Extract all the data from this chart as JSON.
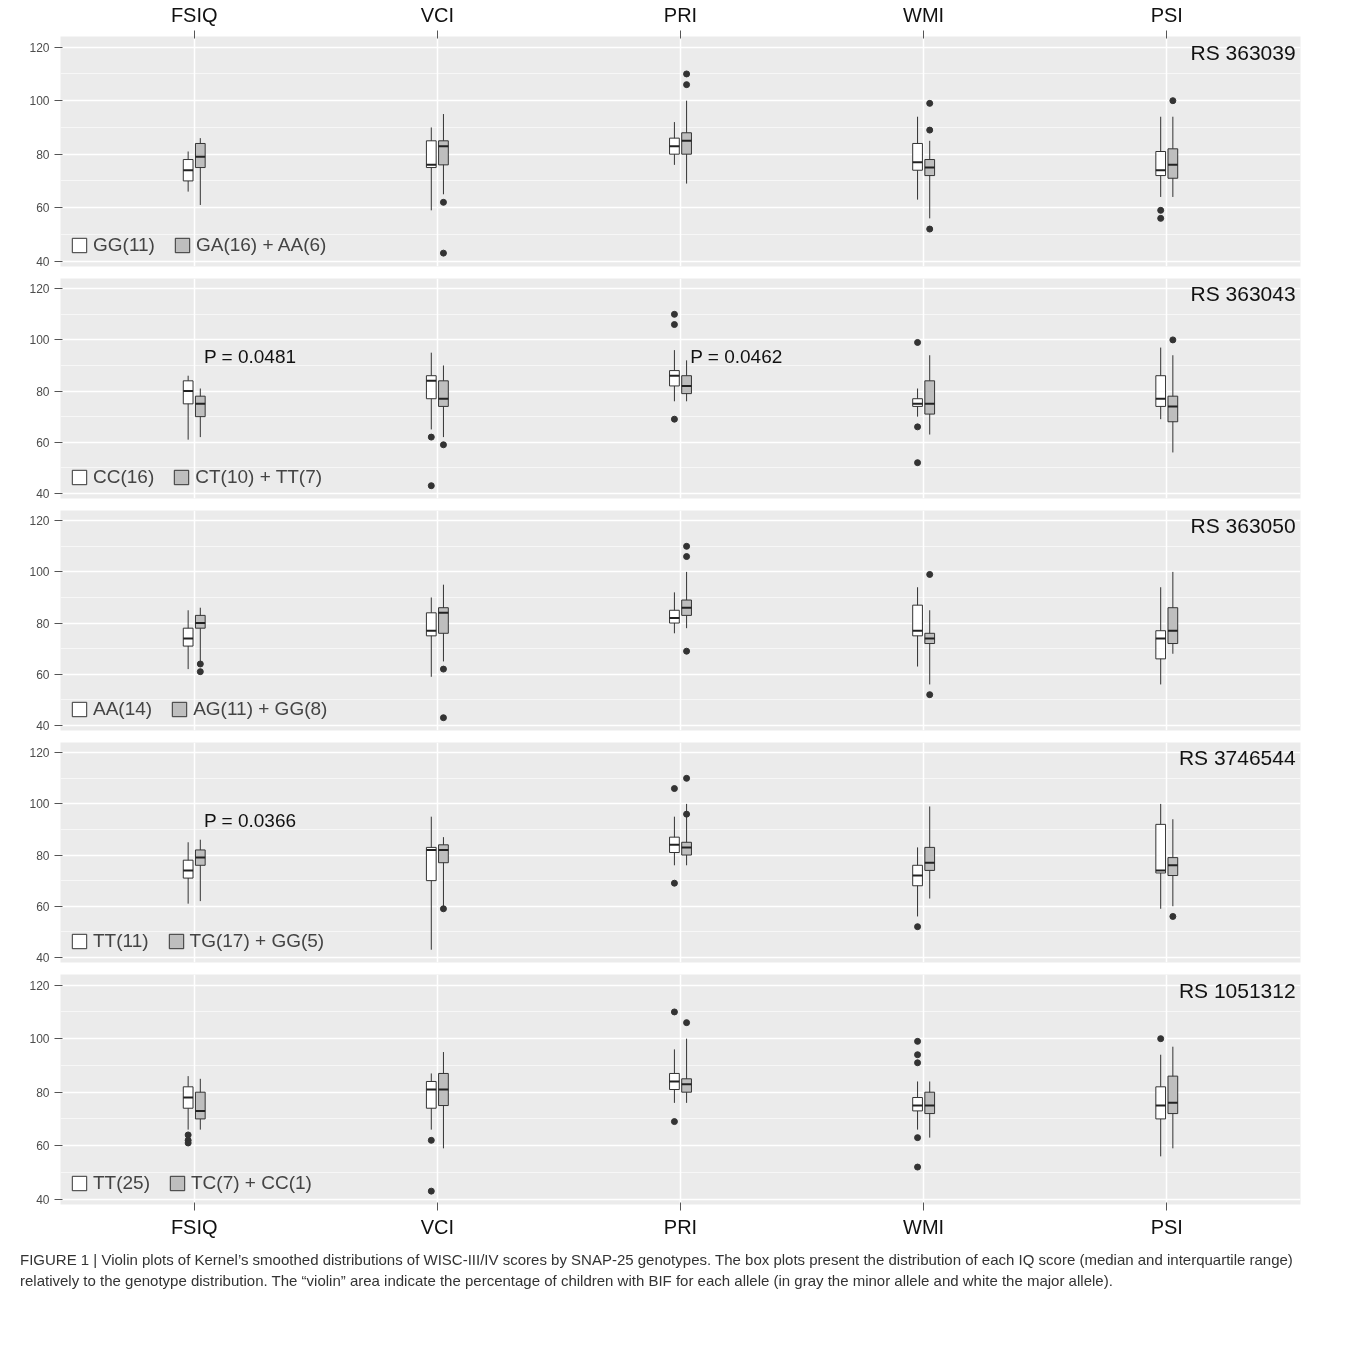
{
  "chart_data": [
    {
      "type": "box",
      "title": "RS 363039",
      "categories": [
        "FSIQ",
        "VCI",
        "PRI",
        "WMI",
        "PSI"
      ],
      "ylim": [
        38,
        124
      ],
      "yticks": [
        40,
        60,
        80,
        100,
        120
      ],
      "grid": true,
      "legend": "bottom left",
      "series": [
        {
          "name": "GG(11)",
          "color": "#ffffff",
          "boxes": [
            {
              "low": 66,
              "q1": 70,
              "median": 74,
              "q3": 78,
              "high": 81
            },
            {
              "low": 59,
              "q1": 75,
              "median": 76,
              "q3": 85,
              "high": 90
            },
            {
              "low": 76,
              "q1": 80,
              "median": 83,
              "q3": 86,
              "high": 92
            },
            {
              "low": 63,
              "q1": 74,
              "median": 77,
              "q3": 84,
              "high": 94
            },
            {
              "low": 64,
              "q1": 72,
              "median": 74,
              "q3": 81,
              "high": 94,
              "outliers": [
                59,
                56
              ]
            }
          ]
        },
        {
          "name": "GA(16) + AA(6)",
          "color": "#bebebe",
          "boxes": [
            {
              "low": 61,
              "q1": 75,
              "median": 79,
              "q3": 84,
              "high": 86
            },
            {
              "low": 65,
              "q1": 76,
              "median": 83,
              "q3": 85,
              "high": 95,
              "outliers": [
                62,
                43
              ]
            },
            {
              "low": 69,
              "q1": 80,
              "median": 85,
              "q3": 88,
              "high": 100,
              "outliers": [
                106,
                110
              ]
            },
            {
              "low": 56,
              "q1": 72,
              "median": 75,
              "q3": 78,
              "high": 85,
              "outliers": [
                99,
                89,
                52
              ]
            },
            {
              "low": 64,
              "q1": 71,
              "median": 76,
              "q3": 82,
              "high": 94,
              "outliers": [
                100
              ]
            }
          ]
        }
      ]
    },
    {
      "type": "box",
      "title": "RS 363043",
      "categories": [
        "FSIQ",
        "VCI",
        "PRI",
        "WMI",
        "PSI"
      ],
      "ylim": [
        38,
        124
      ],
      "yticks": [
        40,
        60,
        80,
        100,
        120
      ],
      "grid": true,
      "legend": "bottom left",
      "tick_labels": "y",
      "annotations": [
        "P = 0.0481",
        "P = 0.0462"
      ],
      "series": [
        {
          "name": "CC(16)",
          "color": "#ffffff",
          "boxes": [
            {
              "low": 61,
              "q1": 75,
              "median": 80,
              "q3": 84,
              "high": 86
            },
            {
              "low": 65,
              "q1": 77,
              "median": 84,
              "q3": 86,
              "high": 95,
              "outliers": [
                62,
                43
              ]
            },
            {
              "low": 76,
              "q1": 82,
              "median": 86,
              "q3": 88,
              "high": 96,
              "outliers": [
                106,
                110,
                69
              ]
            },
            {
              "low": 70,
              "q1": 74,
              "median": 75,
              "q3": 77,
              "high": 81,
              "outliers": [
                99,
                66,
                52
              ]
            },
            {
              "low": 69,
              "q1": 74,
              "median": 77,
              "q3": 86,
              "high": 97
            }
          ]
        },
        {
          "name": "CT(10) + TT(7)",
          "color": "#bebebe",
          "boxes": [
            {
              "low": 62,
              "q1": 70,
              "median": 75,
              "q3": 78,
              "high": 81
            },
            {
              "low": 62,
              "q1": 74,
              "median": 77,
              "q3": 84,
              "high": 90,
              "outliers": [
                59
              ]
            },
            {
              "low": 76,
              "q1": 79,
              "median": 82,
              "q3": 86,
              "high": 92
            },
            {
              "low": 63,
              "q1": 71,
              "median": 75,
              "q3": 84,
              "high": 94
            },
            {
              "low": 56,
              "q1": 68,
              "median": 74,
              "q3": 78,
              "high": 94,
              "outliers": [
                100
              ]
            }
          ]
        }
      ]
    },
    {
      "type": "box",
      "title": "RS 363050",
      "categories": [
        "FSIQ",
        "VCI",
        "PRI",
        "WMI",
        "PSI"
      ],
      "ylim": [
        38,
        124
      ],
      "yticks": [
        40,
        60,
        80,
        100,
        120
      ],
      "grid": true,
      "legend": "bottom left",
      "tick_labels": "y",
      "series": [
        {
          "name": "AA(14)",
          "color": "#ffffff",
          "boxes": [
            {
              "low": 62,
              "q1": 71,
              "median": 74,
              "q3": 78,
              "high": 85
            },
            {
              "low": 59,
              "q1": 75,
              "median": 77,
              "q3": 84,
              "high": 90
            },
            {
              "low": 76,
              "q1": 80,
              "median": 82,
              "q3": 85,
              "high": 92
            },
            {
              "low": 63,
              "q1": 75,
              "median": 77,
              "q3": 87,
              "high": 94
            },
            {
              "low": 56,
              "q1": 66,
              "median": 74,
              "q3": 77,
              "high": 94
            }
          ]
        },
        {
          "name": "AG(11) + GG(8)",
          "color": "#bebebe",
          "boxes": [
            {
              "low": 65,
              "q1": 78,
              "median": 80,
              "q3": 83,
              "high": 86,
              "outliers": [
                64,
                61
              ]
            },
            {
              "low": 65,
              "q1": 76,
              "median": 84,
              "q3": 86,
              "high": 95,
              "outliers": [
                62,
                43
              ]
            },
            {
              "low": 78,
              "q1": 83,
              "median": 86,
              "q3": 89,
              "high": 100,
              "outliers": [
                106,
                110,
                69
              ]
            },
            {
              "low": 56,
              "q1": 72,
              "median": 74,
              "q3": 76,
              "high": 85,
              "outliers": [
                99,
                52
              ]
            },
            {
              "low": 68,
              "q1": 72,
              "median": 77,
              "q3": 86,
              "high": 100
            }
          ]
        }
      ]
    },
    {
      "type": "box",
      "title": "RS 3746544",
      "categories": [
        "FSIQ",
        "VCI",
        "PRI",
        "WMI",
        "PSI"
      ],
      "ylim": [
        38,
        124
      ],
      "yticks": [
        40,
        60,
        80,
        100,
        120
      ],
      "grid": true,
      "legend": "bottom left",
      "tick_labels": "y",
      "annotations": [
        "P = 0.0366"
      ],
      "series": [
        {
          "name": "TT(11)",
          "color": "#ffffff",
          "boxes": [
            {
              "low": 61,
              "q1": 71,
              "median": 74,
              "q3": 78,
              "high": 85
            },
            {
              "low": 43,
              "q1": 70,
              "median": 82,
              "q3": 83,
              "high": 95
            },
            {
              "low": 76,
              "q1": 81,
              "median": 84,
              "q3": 87,
              "high": 95,
              "outliers": [
                106,
                69
              ]
            },
            {
              "low": 56,
              "q1": 68,
              "median": 72,
              "q3": 76,
              "high": 83,
              "outliers": [
                52
              ]
            },
            {
              "low": 59,
              "q1": 73,
              "median": 74,
              "q3": 92,
              "high": 100
            }
          ]
        },
        {
          "name": "TG(17) + GG(5)",
          "color": "#bebebe",
          "boxes": [
            {
              "low": 62,
              "q1": 76,
              "median": 79,
              "q3": 82,
              "high": 86
            },
            {
              "low": 60,
              "q1": 77,
              "median": 82,
              "q3": 84,
              "high": 87,
              "outliers": [
                59
              ]
            },
            {
              "low": 76,
              "q1": 80,
              "median": 83,
              "q3": 85,
              "high": 100,
              "outliers": [
                110,
                96
              ]
            },
            {
              "low": 63,
              "q1": 74,
              "median": 77,
              "q3": 83,
              "high": 99
            },
            {
              "low": 60,
              "q1": 72,
              "median": 76,
              "q3": 79,
              "high": 94,
              "outliers": [
                56
              ]
            }
          ]
        }
      ]
    },
    {
      "type": "box",
      "title": "RS 1051312",
      "categories": [
        "FSIQ",
        "VCI",
        "PRI",
        "WMI",
        "PSI"
      ],
      "ylim": [
        38,
        124
      ],
      "yticks": [
        40,
        60,
        80,
        100,
        120
      ],
      "grid": true,
      "legend": "bottom left",
      "annotations": [
        "FIGURE 1 | Violin plots of Kernel’s smoothed distributions of WISC-III/IV scores by SNAP-25 genotypes. The box plots present the distribution of each IQ score (median and interquartile range) relatively to the genotype distribution. The “violin” area indicate the percentage of children with BIF for each allele (in gray the minor allele and white the major allele)."
      ],
      "series": [
        {
          "name": "TT(25)",
          "color": "#ffffff",
          "boxes": [
            {
              "low": 66,
              "q1": 74,
              "median": 78,
              "q3": 82,
              "high": 86,
              "outliers": [
                64,
                62,
                61
              ]
            },
            {
              "low": 66,
              "q1": 74,
              "median": 81,
              "q3": 84,
              "high": 87,
              "outliers": [
                62,
                43
              ]
            },
            {
              "low": 76,
              "q1": 81,
              "median": 84,
              "q3": 87,
              "high": 96,
              "outliers": [
                110,
                69
              ]
            },
            {
              "low": 66,
              "q1": 73,
              "median": 75,
              "q3": 78,
              "high": 84,
              "outliers": [
                99,
                94,
                91,
                63,
                52
              ]
            },
            {
              "low": 56,
              "q1": 70,
              "median": 75,
              "q3": 82,
              "high": 94,
              "outliers": [
                100
              ]
            }
          ]
        },
        {
          "name": "TC(7) + CC(1)",
          "color": "#bebebe",
          "boxes": [
            {
              "low": 66,
              "q1": 70,
              "median": 73,
              "q3": 80,
              "high": 85
            },
            {
              "low": 59,
              "q1": 75,
              "median": 81,
              "q3": 87,
              "high": 95
            },
            {
              "low": 76,
              "q1": 80,
              "median": 83,
              "q3": 85,
              "high": 100,
              "outliers": [
                106
              ]
            },
            {
              "low": 63,
              "q1": 72,
              "median": 75,
              "q3": 80,
              "high": 84
            },
            {
              "low": 59,
              "q1": 72,
              "median": 76,
              "q3": 86,
              "high": 97
            }
          ]
        }
      ]
    }
  ]
}
